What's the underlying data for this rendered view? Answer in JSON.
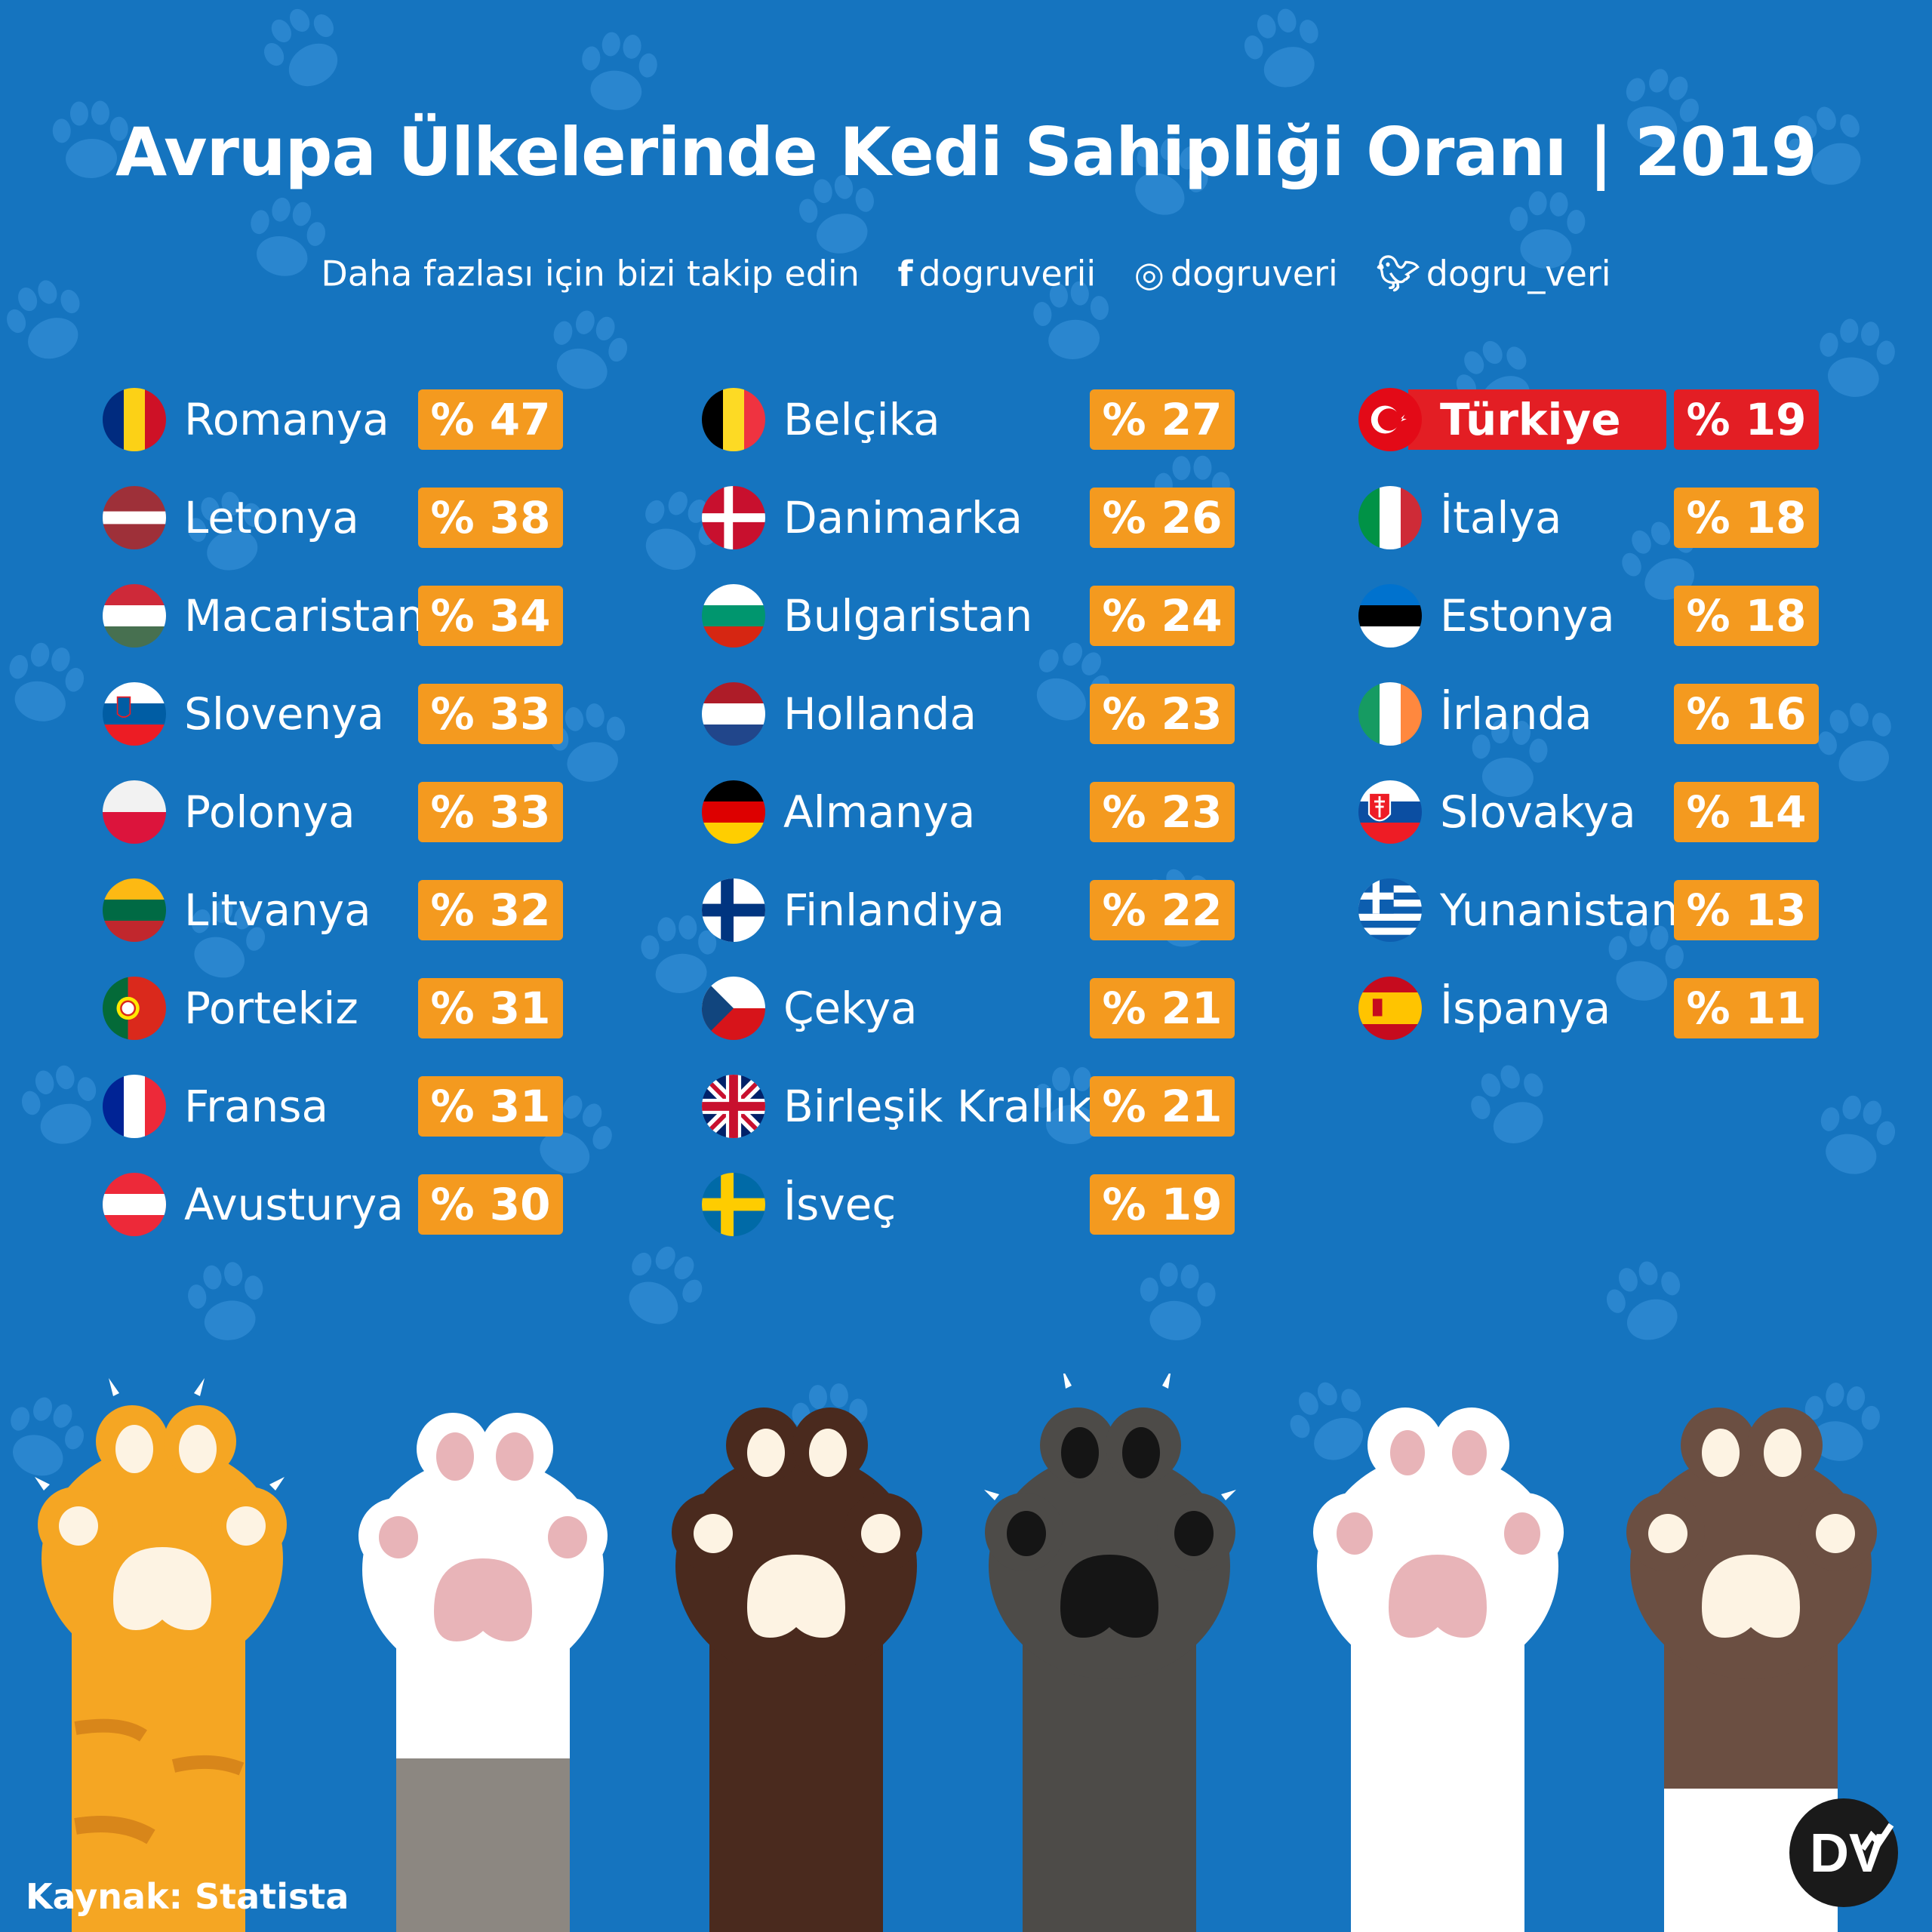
{
  "title": "Avrupa Ülkelerinde Kedi Sahipliği Oranı | 2019",
  "social": {
    "prompt": "Daha fazlası için bizi takip edin",
    "facebook": "dogruverii",
    "instagram": "dogruveri",
    "twitter": "dogru_veri"
  },
  "colors": {
    "background": "#1574bf",
    "badge": "#f49a1f",
    "highlight": "#e31e24"
  },
  "countries": [
    {
      "name": "Romanya",
      "value": "% 47"
    },
    {
      "name": "Letonya",
      "value": "% 38"
    },
    {
      "name": "Macaristan",
      "value": "% 34"
    },
    {
      "name": "Slovenya",
      "value": "% 33"
    },
    {
      "name": "Polonya",
      "value": "% 33"
    },
    {
      "name": "Litvanya",
      "value": "% 32"
    },
    {
      "name": "Portekiz",
      "value": "% 31"
    },
    {
      "name": "Fransa",
      "value": "% 31"
    },
    {
      "name": "Avusturya",
      "value": "% 30"
    },
    {
      "name": "Belçika",
      "value": "% 27"
    },
    {
      "name": "Danimarka",
      "value": "% 26"
    },
    {
      "name": "Bulgaristan",
      "value": "% 24"
    },
    {
      "name": "Hollanda",
      "value": "% 23"
    },
    {
      "name": "Almanya",
      "value": "% 23"
    },
    {
      "name": "Finlandiya",
      "value": "% 22"
    },
    {
      "name": "Çekya",
      "value": "% 21"
    },
    {
      "name": "Birleşik Krallık",
      "value": "% 21"
    },
    {
      "name": "İsveç",
      "value": "% 19"
    },
    {
      "name": "Türkiye",
      "value": "% 19"
    },
    {
      "name": "İtalya",
      "value": "% 18"
    },
    {
      "name": "Estonya",
      "value": "% 18"
    },
    {
      "name": "İrlanda",
      "value": "% 16"
    },
    {
      "name": "Slovakya",
      "value": "% 14"
    },
    {
      "name": "Yunanistan",
      "value": "% 13"
    },
    {
      "name": "İspanya",
      "value": "% 11"
    }
  ],
  "source": "Kaynak: Statista",
  "logo_text": "DV"
}
